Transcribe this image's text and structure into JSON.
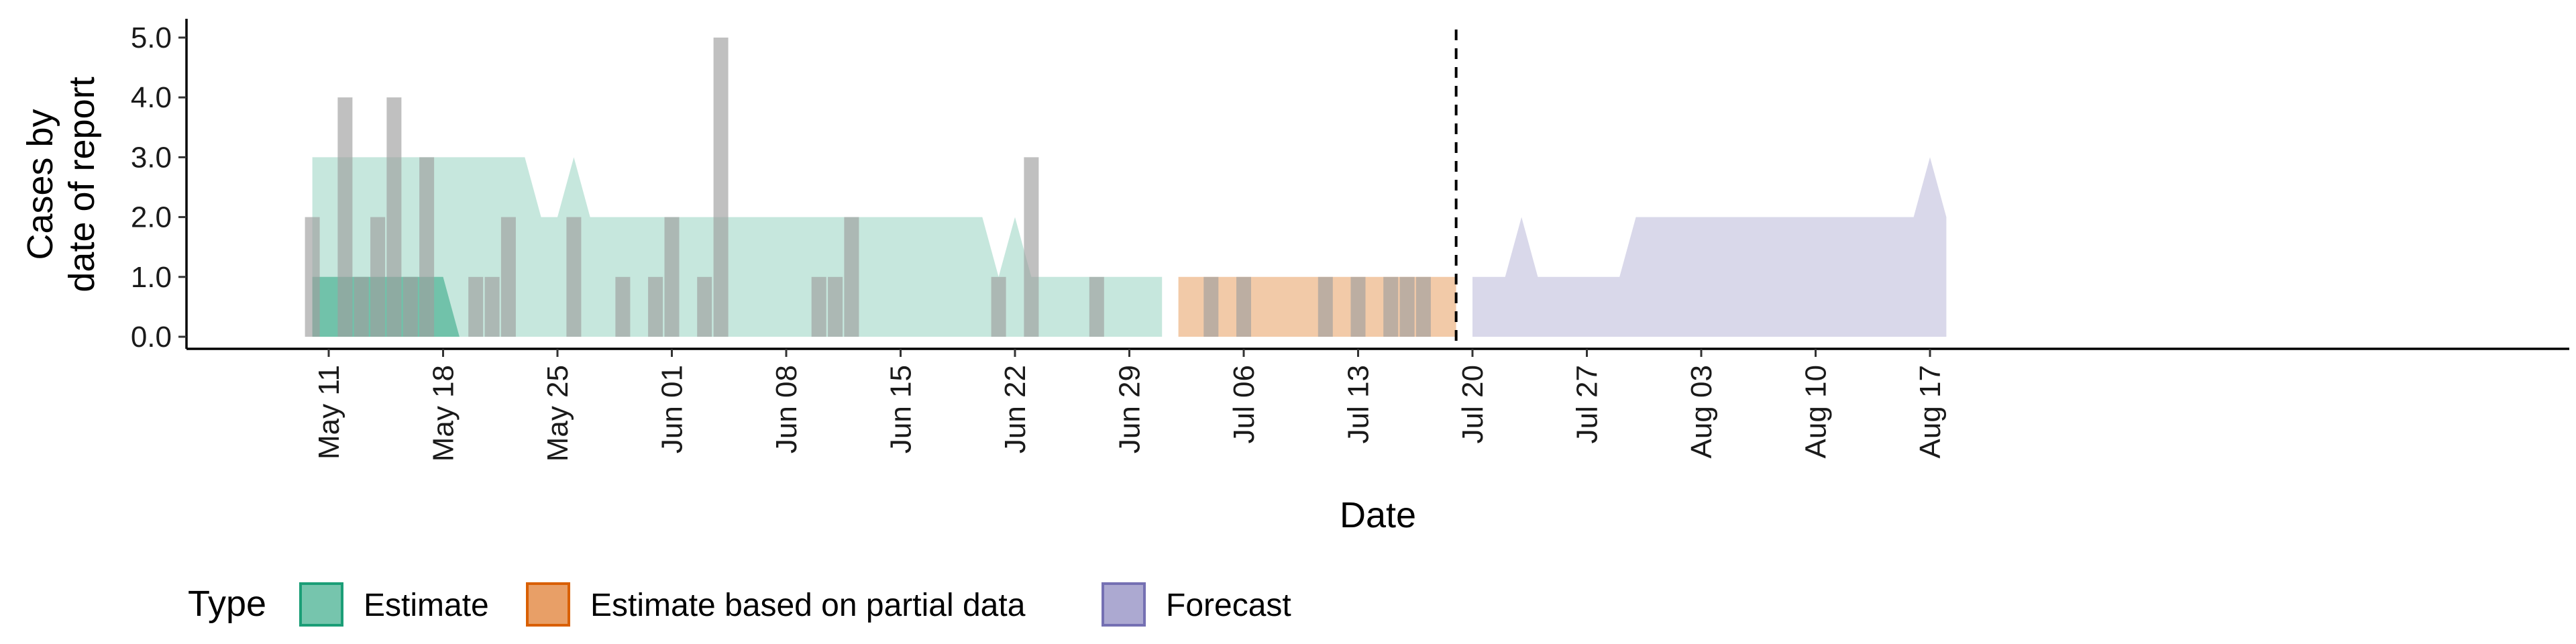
{
  "chart_data": {
    "type": "area",
    "xlabel": "Date",
    "ylabel_lines": [
      "Cases by",
      "date of report"
    ],
    "ylim": [
      0,
      5
    ],
    "y_ticks": [
      "0.0",
      "1.0",
      "2.0",
      "3.0",
      "4.0",
      "5.0"
    ],
    "x_ticks": [
      {
        "date": "2020-05-11",
        "label": "May 11"
      },
      {
        "date": "2020-05-18",
        "label": "May 18"
      },
      {
        "date": "2020-05-25",
        "label": "May 25"
      },
      {
        "date": "2020-06-01",
        "label": "Jun 01"
      },
      {
        "date": "2020-06-08",
        "label": "Jun 08"
      },
      {
        "date": "2020-06-15",
        "label": "Jun 15"
      },
      {
        "date": "2020-06-22",
        "label": "Jun 22"
      },
      {
        "date": "2020-06-29",
        "label": "Jun 29"
      },
      {
        "date": "2020-07-06",
        "label": "Jul 06"
      },
      {
        "date": "2020-07-13",
        "label": "Jul 13"
      },
      {
        "date": "2020-07-20",
        "label": "Jul 20"
      },
      {
        "date": "2020-07-27",
        "label": "Jul 27"
      },
      {
        "date": "2020-08-03",
        "label": "Aug 03"
      },
      {
        "date": "2020-08-10",
        "label": "Aug 10"
      },
      {
        "date": "2020-08-17",
        "label": "Aug 17"
      }
    ],
    "x_range": [
      "2020-04-29",
      "2020-08-29"
    ],
    "vline_date": "2020-07-19",
    "legend": {
      "title": "Type",
      "position": "bottom",
      "entries": [
        {
          "label": "Estimate",
          "fill": "#1b9e77",
          "stroke": "#1b9e77"
        },
        {
          "label": "Estimate based on partial data",
          "fill": "#d95f02",
          "stroke": "#d95f02"
        },
        {
          "label": "Forecast",
          "fill": "#7570b3",
          "stroke": "#7570b3"
        }
      ]
    },
    "colors": {
      "estimate": "#1b9e77",
      "partial": "#e2893e",
      "forecast": "#9c99c8",
      "bars": "#9e9e9e",
      "vline": "#000000"
    },
    "reported_cases": [
      {
        "date": "2020-05-10",
        "value": 2
      },
      {
        "date": "2020-05-12",
        "value": 4
      },
      {
        "date": "2020-05-13",
        "value": 1
      },
      {
        "date": "2020-05-14",
        "value": 2
      },
      {
        "date": "2020-05-15",
        "value": 4
      },
      {
        "date": "2020-05-16",
        "value": 1
      },
      {
        "date": "2020-05-17",
        "value": 3
      },
      {
        "date": "2020-05-20",
        "value": 1
      },
      {
        "date": "2020-05-21",
        "value": 1
      },
      {
        "date": "2020-05-22",
        "value": 2
      },
      {
        "date": "2020-05-26",
        "value": 2
      },
      {
        "date": "2020-05-29",
        "value": 1
      },
      {
        "date": "2020-05-31",
        "value": 1
      },
      {
        "date": "2020-06-01",
        "value": 2
      },
      {
        "date": "2020-06-03",
        "value": 1
      },
      {
        "date": "2020-06-04",
        "value": 5
      },
      {
        "date": "2020-06-10",
        "value": 1
      },
      {
        "date": "2020-06-11",
        "value": 1
      },
      {
        "date": "2020-06-12",
        "value": 2
      },
      {
        "date": "2020-06-21",
        "value": 1
      },
      {
        "date": "2020-06-23",
        "value": 3
      },
      {
        "date": "2020-06-27",
        "value": 1
      },
      {
        "date": "2020-07-04",
        "value": 1
      },
      {
        "date": "2020-07-06",
        "value": 1
      },
      {
        "date": "2020-07-11",
        "value": 1
      },
      {
        "date": "2020-07-13",
        "value": 1
      },
      {
        "date": "2020-07-15",
        "value": 1
      },
      {
        "date": "2020-07-16",
        "value": 1
      },
      {
        "date": "2020-07-17",
        "value": 1
      }
    ],
    "series": [
      {
        "type": "Estimate",
        "band": "outer",
        "points": [
          {
            "date": "2020-05-10",
            "lower": 0,
            "upper": 3
          },
          {
            "date": "2020-05-23",
            "lower": 0,
            "upper": 3
          },
          {
            "date": "2020-05-24",
            "lower": 0,
            "upper": 2
          },
          {
            "date": "2020-05-25",
            "lower": 0,
            "upper": 2
          },
          {
            "date": "2020-05-26",
            "lower": 0,
            "upper": 3
          },
          {
            "date": "2020-05-27",
            "lower": 0,
            "upper": 2
          },
          {
            "date": "2020-06-20",
            "lower": 0,
            "upper": 2
          },
          {
            "date": "2020-06-21",
            "lower": 0,
            "upper": 1
          },
          {
            "date": "2020-06-22",
            "lower": 0,
            "upper": 2
          },
          {
            "date": "2020-06-23",
            "lower": 0,
            "upper": 1
          },
          {
            "date": "2020-07-01",
            "lower": 0,
            "upper": 1
          }
        ]
      },
      {
        "type": "Estimate",
        "band": "inner",
        "points": [
          {
            "date": "2020-05-10",
            "lower": 0,
            "upper": 1
          },
          {
            "date": "2020-05-18",
            "lower": 0,
            "upper": 1
          },
          {
            "date": "2020-05-19",
            "lower": 0,
            "upper": 0
          }
        ]
      },
      {
        "type": "Estimate based on partial data",
        "band": "outer",
        "points": [
          {
            "date": "2020-07-02",
            "lower": 0,
            "upper": 1
          },
          {
            "date": "2020-07-19",
            "lower": 0,
            "upper": 1
          }
        ]
      },
      {
        "type": "Forecast",
        "band": "outer",
        "points": [
          {
            "date": "2020-07-20",
            "lower": 0,
            "upper": 1
          },
          {
            "date": "2020-07-22",
            "lower": 0,
            "upper": 1
          },
          {
            "date": "2020-07-23",
            "lower": 0,
            "upper": 2
          },
          {
            "date": "2020-07-24",
            "lower": 0,
            "upper": 1
          },
          {
            "date": "2020-07-29",
            "lower": 0,
            "upper": 1
          },
          {
            "date": "2020-07-30",
            "lower": 0,
            "upper": 2
          },
          {
            "date": "2020-08-16",
            "lower": 0,
            "upper": 2
          },
          {
            "date": "2020-08-17",
            "lower": 0,
            "upper": 3
          },
          {
            "date": "2020-08-18",
            "lower": 0,
            "upper": 2
          }
        ]
      }
    ]
  }
}
